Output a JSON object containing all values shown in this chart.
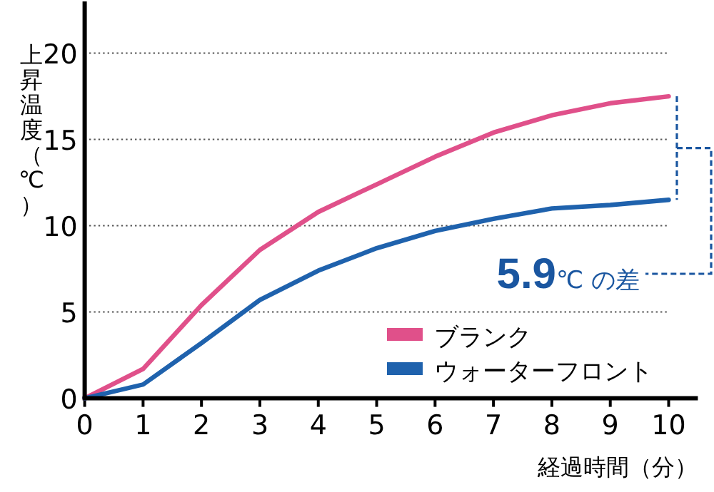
{
  "chart_data": {
    "type": "line",
    "xlabel": "経過時間（分）",
    "ylabel": "上昇温度（℃）",
    "x": [
      0,
      1,
      2,
      3,
      4,
      5,
      6,
      7,
      8,
      9,
      10
    ],
    "series": [
      {
        "name": "ブランク",
        "color": "#e0508a",
        "values": [
          0,
          1.7,
          5.4,
          8.6,
          10.8,
          12.4,
          14.0,
          15.4,
          16.4,
          17.1,
          17.5
        ]
      },
      {
        "name": "ウォーターフロント",
        "color": "#1f62ad",
        "values": [
          0,
          0.8,
          3.2,
          5.7,
          7.4,
          8.7,
          9.7,
          10.4,
          11.0,
          11.2,
          11.5
        ]
      }
    ],
    "xlim": [
      0,
      10.5
    ],
    "ylim": [
      0,
      23
    ],
    "xticks": [
      0,
      1,
      2,
      3,
      4,
      5,
      6,
      7,
      8,
      9,
      10
    ],
    "yticks": [
      0,
      5,
      10,
      15,
      20
    ],
    "grid": "y",
    "legend": "bottom right",
    "marker": "none",
    "line_style": "solid",
    "annotations": [
      "**5.9**℃ の差"
    ]
  }
}
